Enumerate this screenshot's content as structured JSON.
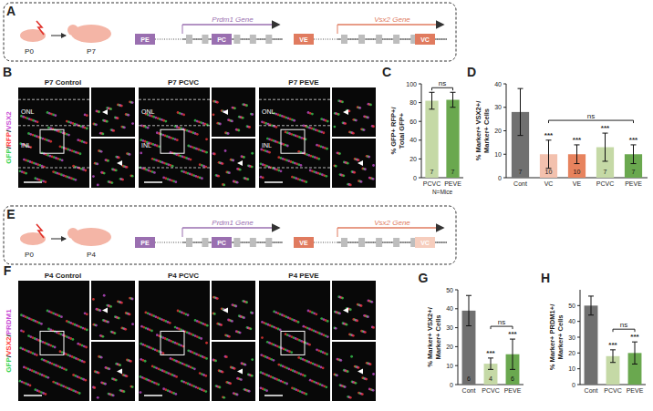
{
  "panels": {
    "A": {
      "letter": "A",
      "ages": [
        "P0",
        "P7"
      ],
      "genes": [
        {
          "name": "Prdm1 Gene",
          "enhancer": "PE",
          "coding": "PC"
        },
        {
          "name": "Vsx2 Gene",
          "enhancer": "VE",
          "coding": "VC"
        }
      ]
    },
    "B": {
      "letter": "B",
      "channels": "GFP/RFP/VSX2",
      "images": [
        "P7 Control",
        "P7 PCVC",
        "P7 PEVE"
      ],
      "layers": [
        "ONL",
        "INL"
      ]
    },
    "E": {
      "letter": "E",
      "ages": [
        "P0",
        "P4"
      ],
      "genes": [
        {
          "name": "Prdm1 Gene",
          "enhancer": "PE",
          "coding": "PC"
        },
        {
          "name": "Vsx2 Gene",
          "enhancer": "VE",
          "coding": "VC"
        }
      ]
    },
    "F": {
      "letter": "F",
      "channels": "GFP/VSX2/PRDM1",
      "images": [
        "P4 Control",
        "P4 PCVC",
        "P4 PEVE"
      ]
    }
  },
  "chart_data": [
    {
      "panel": "C",
      "type": "bar",
      "ylabel": "% GFP+ RFP+/ Total GFP+",
      "categories": [
        "PCVC",
        "PEVE"
      ],
      "values": [
        82,
        83
      ],
      "errors": [
        9,
        8
      ],
      "colors": [
        "#c5d9a6",
        "#6aa84f"
      ],
      "ylim": [
        0,
        100
      ],
      "yticks": [
        0,
        20,
        40,
        60,
        80,
        100
      ],
      "n": [
        7,
        7
      ],
      "comparison": {
        "label": "ns",
        "categories": [
          "PCVC",
          "PEVE"
        ]
      },
      "note": "N=Mice"
    },
    {
      "panel": "D",
      "type": "bar",
      "ylabel": "% Marker+ VSX2+/ Marker+ Cells",
      "categories": [
        "Cont",
        "VC",
        "VE",
        "PCVC",
        "PEVE"
      ],
      "values": [
        28,
        10,
        10,
        13,
        10
      ],
      "errors": [
        10,
        6,
        4,
        6,
        4
      ],
      "colors": [
        "#707070",
        "#f3c1ae",
        "#e7835e",
        "#c5d9a6",
        "#6aa84f"
      ],
      "ylim": [
        0,
        40
      ],
      "yticks": [
        0,
        10,
        20,
        30,
        40
      ],
      "n": [
        7,
        10,
        10,
        7,
        7
      ],
      "stars": [
        null,
        "***",
        "***",
        "***",
        "***"
      ],
      "comparison": {
        "label": "ns",
        "categories": [
          "VC",
          "PEVE"
        ]
      }
    },
    {
      "panel": "G",
      "type": "bar",
      "ylabel": "% Marker+ VSX2+/ Marker+ Cells",
      "categories": [
        "Cont",
        "PCVC",
        "PEVE"
      ],
      "values": [
        39,
        11,
        16
      ],
      "errors": [
        8,
        3,
        8
      ],
      "colors": [
        "#707070",
        "#c5d9a6",
        "#6aa84f"
      ],
      "ylim": [
        0,
        50
      ],
      "yticks": [
        0,
        10,
        20,
        30,
        40,
        50
      ],
      "n": [
        6,
        4,
        6
      ],
      "stars": [
        null,
        "***",
        "***"
      ],
      "comparison": {
        "label": "ns",
        "categories": [
          "PCVC",
          "PEVE"
        ]
      }
    },
    {
      "panel": "H",
      "type": "bar",
      "ylabel": "% Marker+ PRDM1+/ Marker+ Cells",
      "categories": [
        "Cont",
        "PCVC",
        "PEVE"
      ],
      "values": [
        50,
        18,
        20
      ],
      "errors": [
        6,
        4,
        7
      ],
      "colors": [
        "#707070",
        "#c5d9a6",
        "#6aa84f"
      ],
      "ylim": [
        0,
        60
      ],
      "yticks": [
        0,
        10,
        20,
        30,
        40,
        50
      ],
      "stars": [
        null,
        "***",
        "***"
      ],
      "comparison": {
        "label": "ns",
        "categories": [
          "PCVC",
          "PEVE"
        ]
      }
    }
  ]
}
